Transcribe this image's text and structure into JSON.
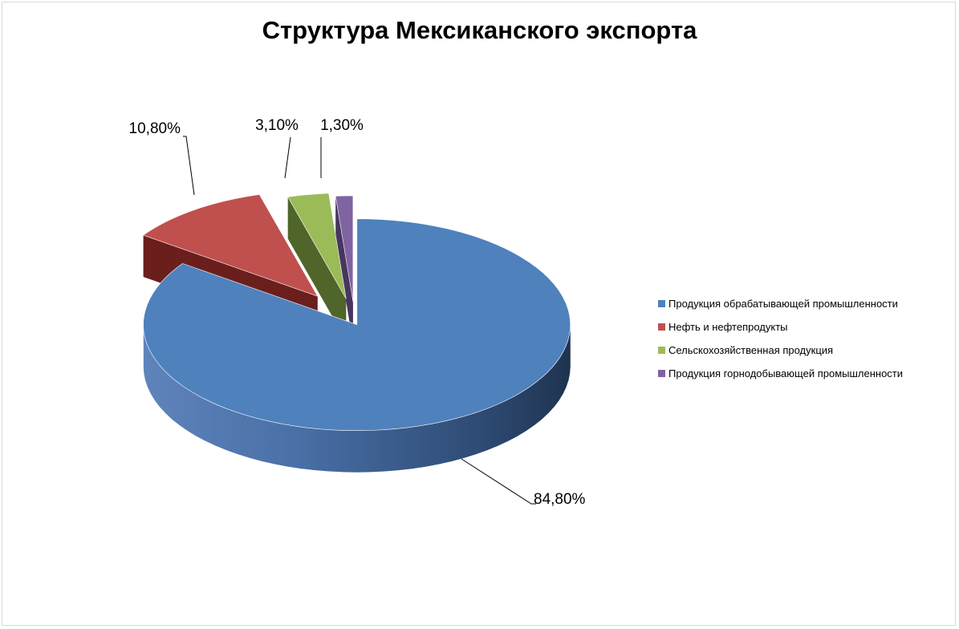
{
  "chart_data": {
    "type": "pie",
    "title": "Структура Мексиканского экспорта",
    "categories": [
      "Продукция обрабатывающей промышленности",
      "Нефть и нефтепродукты",
      "Сельскохозяйственная продукция",
      "Продукция горнодобывающей промышленности"
    ],
    "values": [
      84.8,
      10.8,
      3.1,
      1.3
    ],
    "data_labels": [
      "84,80%",
      "10,80%",
      "3,10%",
      "1,30%"
    ],
    "colors": [
      "#4f81bd",
      "#c0504d",
      "#9bbb59",
      "#8064a2"
    ],
    "exploded": true,
    "three_d": true,
    "legend_position": "right"
  }
}
